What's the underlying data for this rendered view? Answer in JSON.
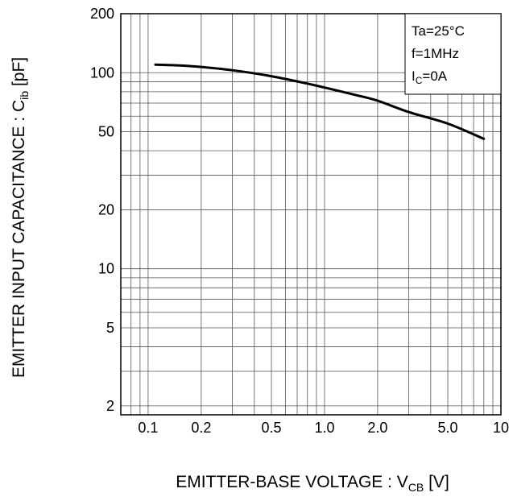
{
  "chart_data": {
    "type": "line",
    "title": "",
    "xlabel": {
      "main": "EMITTER-BASE VOLTAGE : V",
      "sub": "CB",
      "unit": " [V]"
    },
    "ylabel": {
      "main": "EMITTER INPUT CAPACITANCE : C",
      "sub": "ib",
      "unit": " [pF]"
    },
    "x_scale": "log",
    "y_scale": "log",
    "xlim": [
      0.07,
      10
    ],
    "ylim": [
      1.8,
      200
    ],
    "grid": true,
    "x_ticks": [
      {
        "value": 0.1,
        "label": "0.1"
      },
      {
        "value": 0.2,
        "label": "0.2"
      },
      {
        "value": 0.5,
        "label": "0.5"
      },
      {
        "value": 1.0,
        "label": "1.0"
      },
      {
        "value": 2.0,
        "label": "2.0"
      },
      {
        "value": 5.0,
        "label": "5.0"
      },
      {
        "value": 10,
        "label": "10"
      }
    ],
    "y_ticks": [
      {
        "value": 2,
        "label": "2"
      },
      {
        "value": 5,
        "label": "5"
      },
      {
        "value": 10,
        "label": "10"
      },
      {
        "value": 20,
        "label": "20"
      },
      {
        "value": 50,
        "label": "50"
      },
      {
        "value": 100,
        "label": "100"
      },
      {
        "value": 200,
        "label": "200"
      }
    ],
    "conditions": [
      {
        "main": "Ta=25°C",
        "sub": "",
        "rest": ""
      },
      {
        "main": "f=1MHz",
        "sub": "",
        "rest": ""
      },
      {
        "main": "I",
        "sub": "C",
        "rest": "=0A"
      }
    ],
    "series": [
      {
        "color": "#000000",
        "x": [
          0.11,
          0.15,
          0.2,
          0.3,
          0.5,
          0.8,
          1.0,
          1.5,
          2.0,
          3.0,
          5.0,
          8.0
        ],
        "y": [
          110,
          109,
          107,
          103,
          96,
          88,
          84,
          77,
          72,
          63,
          55,
          46
        ]
      }
    ]
  }
}
